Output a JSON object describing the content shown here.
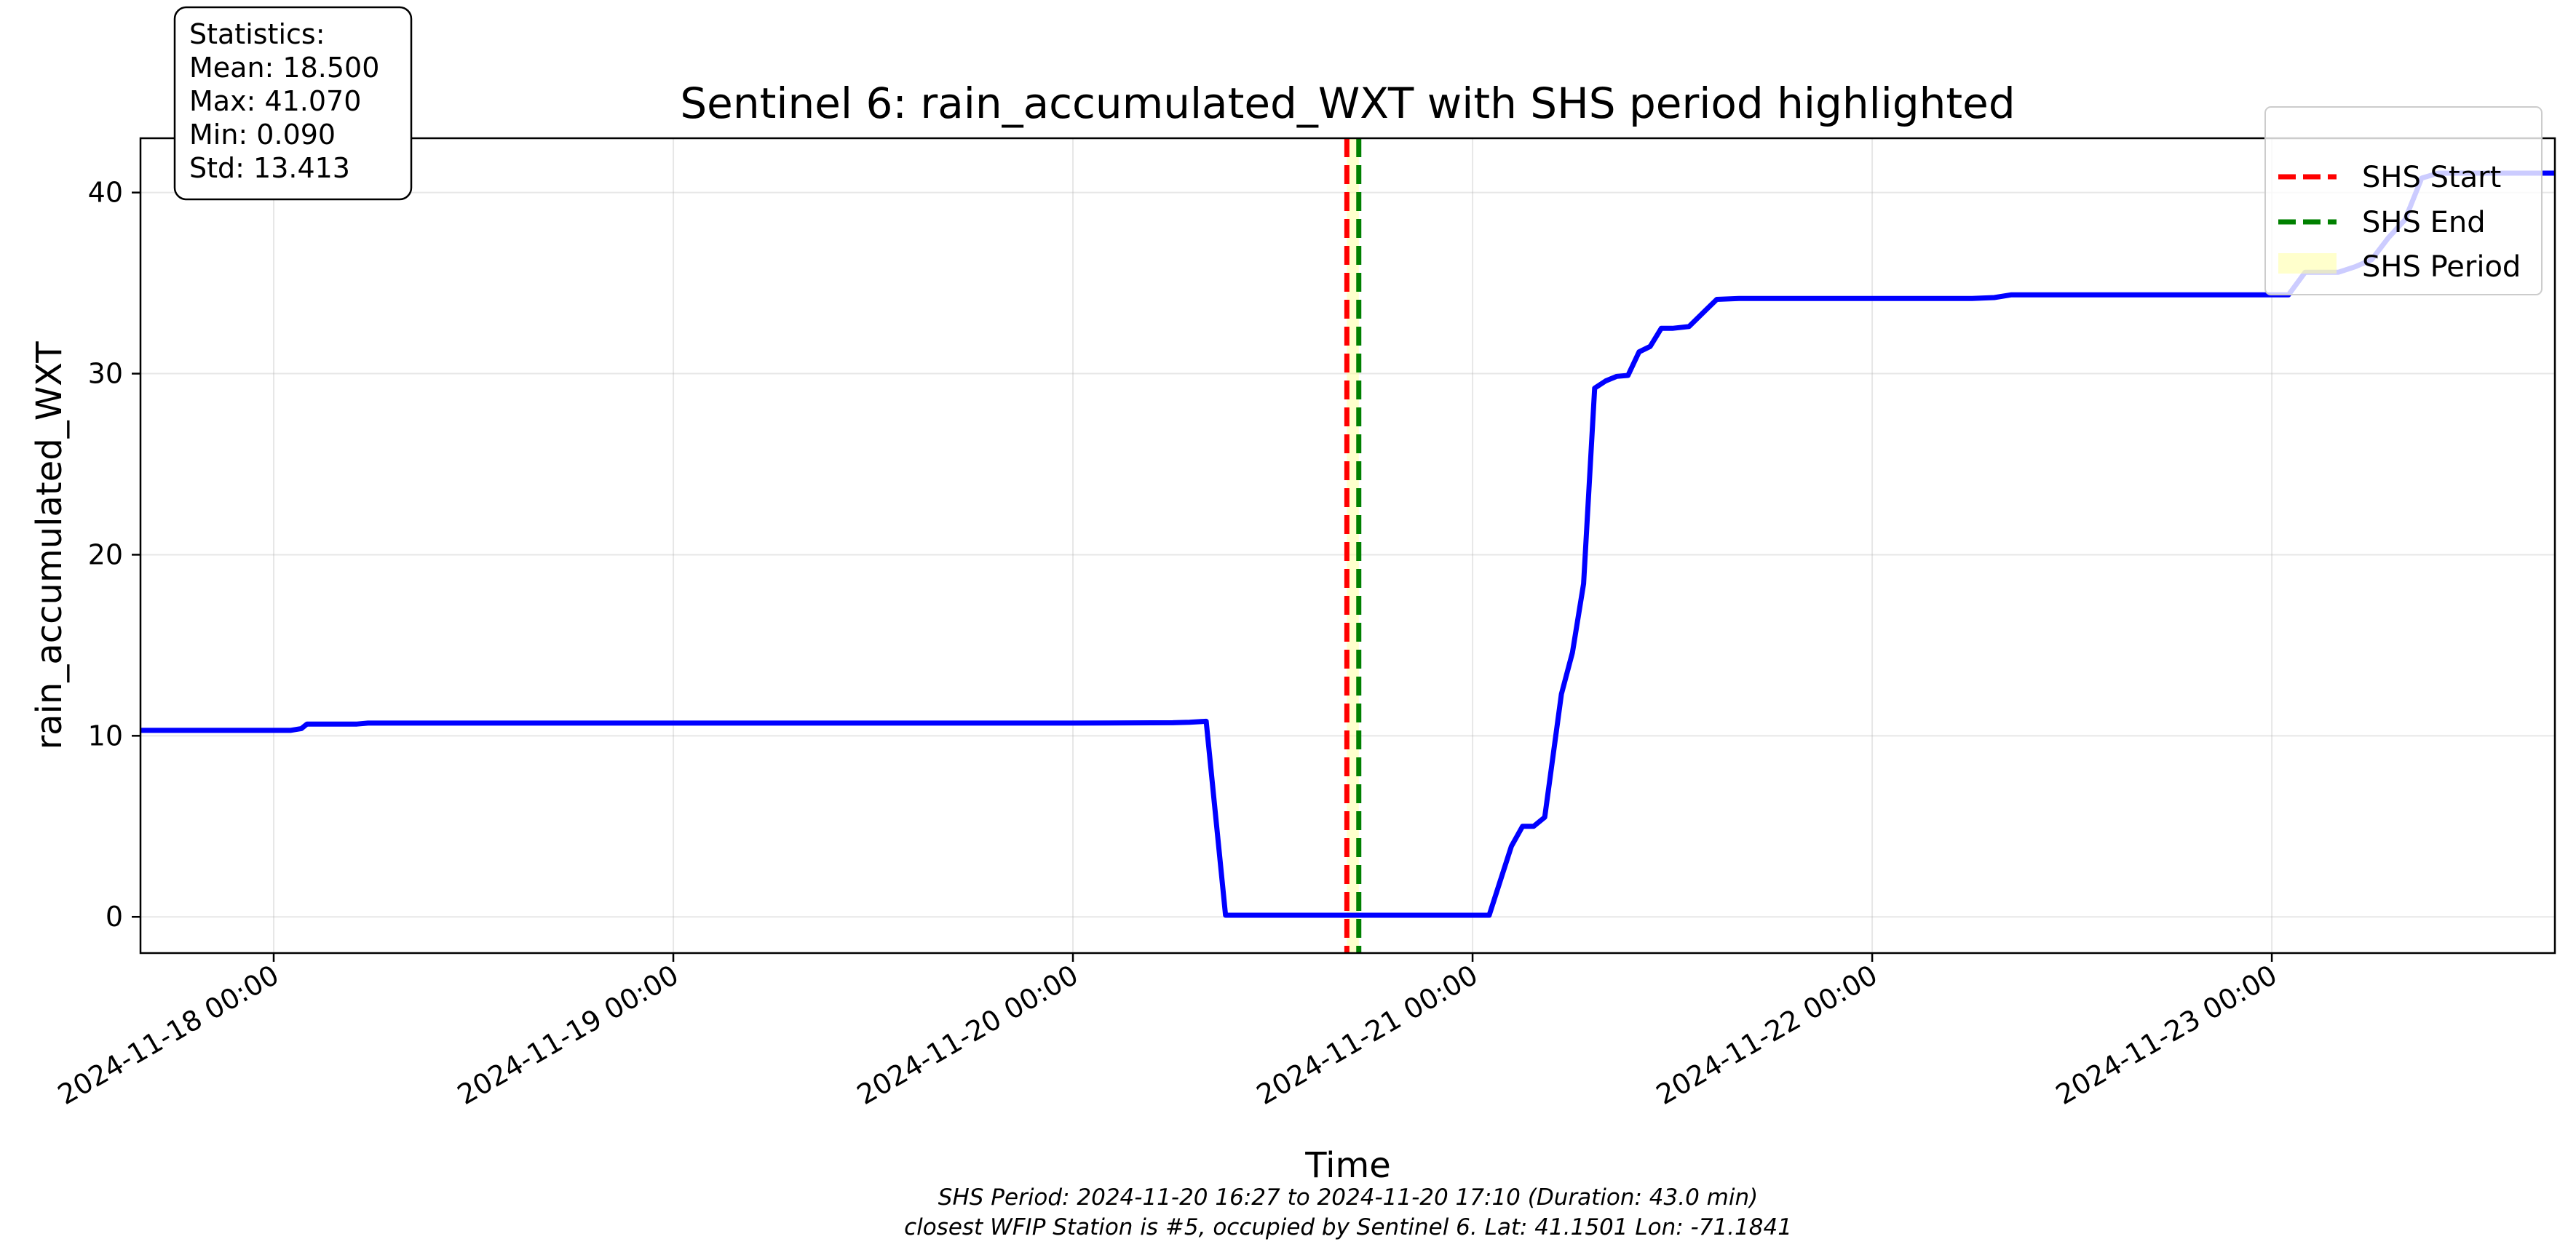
{
  "chart_data": {
    "type": "line",
    "title": "Sentinel 6: rain_accumulated_WXT with SHS period highlighted",
    "xlabel": "Time",
    "ylabel": "rain_accumulated_WXT",
    "x_range": [
      "2024-11-17 16:00",
      "2024-11-23 17:00"
    ],
    "ylim": [
      -2.0,
      43.0
    ],
    "grid": true,
    "legend_position": "top-right",
    "y_ticks": [
      0,
      10,
      20,
      30,
      40
    ],
    "x_ticks": [
      {
        "t": "2024-11-18 00:00",
        "label": "2024-11-18 00:00"
      },
      {
        "t": "2024-11-19 00:00",
        "label": "2024-11-19 00:00"
      },
      {
        "t": "2024-11-20 00:00",
        "label": "2024-11-20 00:00"
      },
      {
        "t": "2024-11-21 00:00",
        "label": "2024-11-21 00:00"
      },
      {
        "t": "2024-11-22 00:00",
        "label": "2024-11-22 00:00"
      },
      {
        "t": "2024-11-23 00:00",
        "label": "2024-11-23 00:00"
      }
    ],
    "series": [
      {
        "color": "#0000ff",
        "points": [
          [
            "2024-11-17 16:00",
            10.3
          ],
          [
            "2024-11-18 00:00",
            10.3
          ],
          [
            "2024-11-18 01:00",
            10.3
          ],
          [
            "2024-11-18 01:40",
            10.4
          ],
          [
            "2024-11-18 02:00",
            10.65
          ],
          [
            "2024-11-18 04:00",
            10.65
          ],
          [
            "2024-11-18 05:00",
            10.65
          ],
          [
            "2024-11-18 05:40",
            10.7
          ],
          [
            "2024-11-18 12:00",
            10.7
          ],
          [
            "2024-11-19 00:00",
            10.7
          ],
          [
            "2024-11-20 00:00",
            10.7
          ],
          [
            "2024-11-20 06:00",
            10.72
          ],
          [
            "2024-11-20 07:00",
            10.75
          ],
          [
            "2024-11-20 08:00",
            10.8
          ],
          [
            "2024-11-20 09:10",
            0.09
          ],
          [
            "2024-11-20 16:00",
            0.09
          ],
          [
            "2024-11-21 00:00",
            0.09
          ],
          [
            "2024-11-21 01:00",
            0.09
          ],
          [
            "2024-11-21 02:20",
            3.9
          ],
          [
            "2024-11-21 03:00",
            5.0
          ],
          [
            "2024-11-21 03:40",
            5.0
          ],
          [
            "2024-11-21 04:20",
            5.5
          ],
          [
            "2024-11-21 05:20",
            12.3
          ],
          [
            "2024-11-21 06:00",
            14.6
          ],
          [
            "2024-11-21 06:40",
            18.4
          ],
          [
            "2024-11-21 07:20",
            29.2
          ],
          [
            "2024-11-21 08:00",
            29.6
          ],
          [
            "2024-11-21 08:40",
            29.85
          ],
          [
            "2024-11-21 09:20",
            29.9
          ],
          [
            "2024-11-21 10:00",
            31.2
          ],
          [
            "2024-11-21 10:40",
            31.5
          ],
          [
            "2024-11-21 11:20",
            32.5
          ],
          [
            "2024-11-21 12:00",
            32.5
          ],
          [
            "2024-11-21 13:00",
            32.6
          ],
          [
            "2024-11-21 14:00",
            33.5
          ],
          [
            "2024-11-21 14:40",
            34.1
          ],
          [
            "2024-11-21 16:00",
            34.15
          ],
          [
            "2024-11-22 00:00",
            34.15
          ],
          [
            "2024-11-22 06:00",
            34.15
          ],
          [
            "2024-11-22 07:20",
            34.2
          ],
          [
            "2024-11-22 08:20",
            34.35
          ],
          [
            "2024-11-22 12:00",
            34.35
          ],
          [
            "2024-11-23 00:00",
            34.35
          ],
          [
            "2024-11-23 01:00",
            34.35
          ],
          [
            "2024-11-23 02:00",
            35.6
          ],
          [
            "2024-11-23 04:00",
            35.6
          ],
          [
            "2024-11-23 05:00",
            35.9
          ],
          [
            "2024-11-23 06:00",
            36.3
          ],
          [
            "2024-11-23 07:00",
            37.5
          ],
          [
            "2024-11-23 08:00",
            38.5
          ],
          [
            "2024-11-23 09:00",
            40.8
          ],
          [
            "2024-11-23 10:00",
            41.07
          ],
          [
            "2024-11-23 17:00",
            41.07
          ]
        ]
      }
    ],
    "shs_period": {
      "start": "2024-11-20 16:27",
      "end": "2024-11-20 17:10",
      "fill_color": "#ffff99"
    },
    "legend": [
      {
        "label": "SHS Start",
        "color": "#ff0000",
        "style": "dashed"
      },
      {
        "label": "SHS End",
        "color": "#008000",
        "style": "dashed"
      },
      {
        "label": "SHS Period",
        "color": "#ffff99",
        "style": "patch"
      }
    ],
    "statistics": {
      "heading": "Statistics:",
      "mean": "Mean: 18.500",
      "max": "Max: 41.070",
      "min": "Min: 0.090",
      "std": "Std: 13.413"
    },
    "footnotes": [
      "SHS Period: 2024-11-20 16:27 to 2024-11-20 17:10 (Duration: 43.0 min)",
      "closest WFIP Station is #5, occupied by Sentinel 6. Lat: 41.1501 Lon: -71.1841"
    ]
  }
}
